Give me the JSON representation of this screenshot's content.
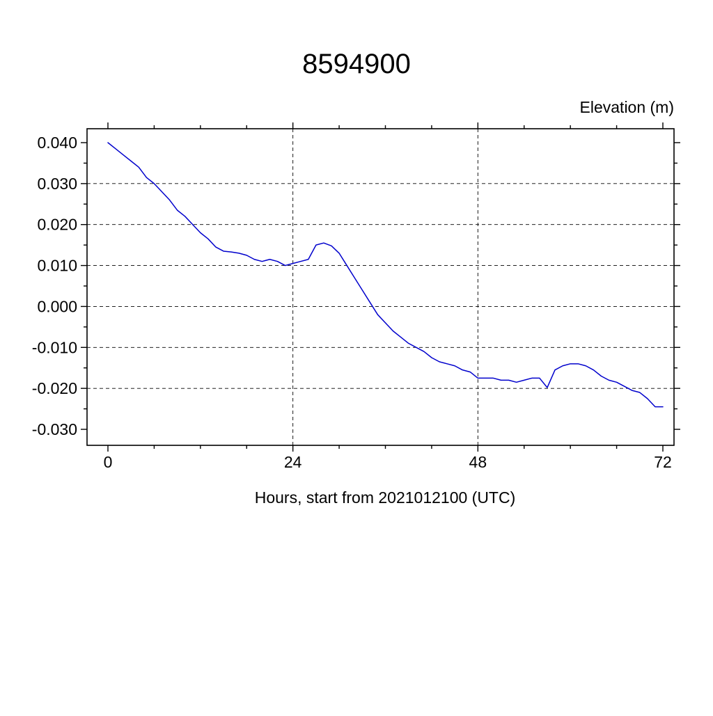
{
  "chart_data": {
    "type": "line",
    "title": "8594900",
    "ylabel": "Elevation (m)",
    "xlabel": "Hours, start from 2021012100 (UTC)",
    "xlim": [
      0,
      72
    ],
    "ylim": [
      -0.03,
      0.04
    ],
    "x_major_ticks": [
      0,
      24,
      48,
      72
    ],
    "x_tick_labels": [
      "0",
      "24",
      "48",
      "72"
    ],
    "x_minor_ticks": [
      6,
      12,
      18,
      30,
      36,
      42,
      54,
      60,
      66
    ],
    "y_major_ticks": [
      0.04,
      0.03,
      0.02,
      0.01,
      0.0,
      -0.01,
      -0.02,
      -0.03
    ],
    "y_tick_labels": [
      "0.040",
      "0.030",
      "0.020",
      "0.010",
      "0.000",
      "-0.010",
      "-0.020",
      "-0.030"
    ],
    "y_minor_ticks": [
      0.035,
      0.025,
      0.015,
      0.005,
      -0.005,
      -0.015,
      -0.025
    ],
    "x_gridlines": [
      24,
      48
    ],
    "y_gridlines": [
      0.03,
      0.02,
      0.01,
      0.0,
      -0.01,
      -0.02
    ],
    "grid_style": "dashed",
    "legend": "none",
    "line_color": "#0000cc",
    "axis_color": "#000000",
    "series": [
      {
        "name": "elevation",
        "x_start": 0,
        "x_step": 1,
        "values": [
          0.04,
          0.0385,
          0.037,
          0.0355,
          0.034,
          0.0315,
          0.03,
          0.028,
          0.026,
          0.0235,
          0.022,
          0.02,
          0.018,
          0.0165,
          0.0145,
          0.0135,
          0.0133,
          0.013,
          0.0125,
          0.0115,
          0.011,
          0.0115,
          0.011,
          0.01,
          0.0105,
          0.011,
          0.0115,
          0.015,
          0.0155,
          0.0148,
          0.013,
          0.01,
          0.007,
          0.004,
          0.001,
          -0.002,
          -0.004,
          -0.006,
          -0.0075,
          -0.009,
          -0.01,
          -0.011,
          -0.0125,
          -0.0135,
          -0.014,
          -0.0145,
          -0.0155,
          -0.016,
          -0.0175,
          -0.0175,
          -0.0175,
          -0.018,
          -0.018,
          -0.0185,
          -0.018,
          -0.0175,
          -0.0175,
          -0.0198,
          -0.0155,
          -0.0145,
          -0.014,
          -0.014,
          -0.0145,
          -0.0155,
          -0.017,
          -0.018,
          -0.0185,
          -0.0195,
          -0.0205,
          -0.021,
          -0.0225,
          -0.0245,
          -0.0245
        ]
      }
    ]
  }
}
